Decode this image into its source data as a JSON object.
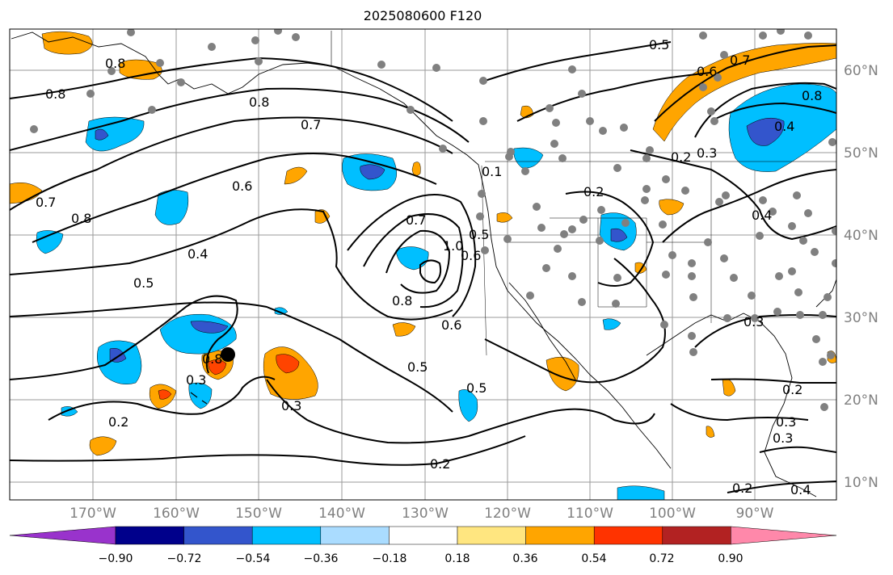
{
  "title": "2025080600 F120",
  "longitude_labels": [
    "170°W",
    "160°W",
    "150°W",
    "140°W",
    "130°W",
    "120°W",
    "110°W",
    "100°W",
    "90°W"
  ],
  "latitude_labels": [
    "60°N",
    "50°N",
    "40°N",
    "30°N",
    "20°N",
    "10°N"
  ],
  "contour_labels": [
    "0.5",
    "0.6",
    "0.7",
    "0.8",
    "0.8",
    "0.8",
    "0.7",
    "0.6",
    "0.5",
    "0.4",
    "0.3",
    "0.2",
    "0.1",
    "0.2",
    "0.3",
    "0.5",
    "0.6",
    "0.7",
    "0.8",
    "0.8",
    "1.0",
    "0.8",
    "0.7",
    "0.6",
    "0.5",
    "0.5",
    "0.2",
    "0.3",
    "0.4",
    "0.8",
    "0.4",
    "0.3",
    "0.2",
    "0.2",
    "0.3",
    "0.2",
    "0.3",
    "0.4"
  ],
  "colorbar": {
    "tick_labels": [
      "−0.90",
      "−0.72",
      "−0.54",
      "−0.36",
      "−0.18",
      "0.18",
      "0.36",
      "0.54",
      "0.72",
      "0.90"
    ],
    "colors": [
      "#9933cc",
      "#00008b",
      "#3355cc",
      "#00bfff",
      "#aadcff",
      "#ffffff",
      "#ffe680",
      "#ffa500",
      "#ff3300",
      "#b22222",
      "#ff88aa"
    ]
  },
  "colors": {
    "positive_fill": "#ffa500",
    "positive_core": "#ff4400",
    "negative_fill": "#00bfff",
    "negative_core": "#3355cc",
    "station_dot": "#808080",
    "marker": "#000000"
  },
  "marker": {
    "type": "black-dot",
    "description_visible": false
  }
}
